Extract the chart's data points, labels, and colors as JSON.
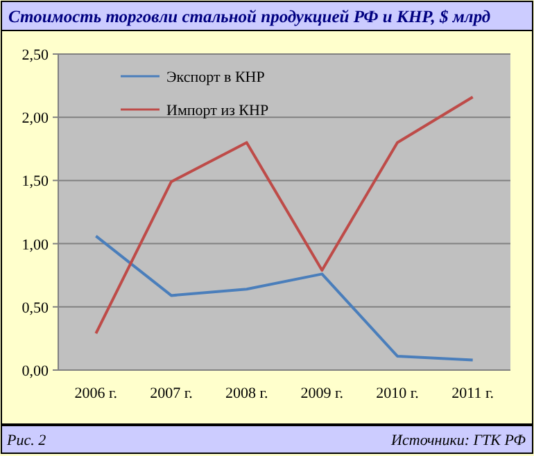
{
  "chart_data": {
    "type": "line",
    "title": "Стоимость торговли стальной продукцией РФ и КНР, $ млрд",
    "categories": [
      "2006 г.",
      "2007 г.",
      "2008 г.",
      "2009 г.",
      "2010 г.",
      "2011 г."
    ],
    "series": [
      {
        "name": "Экспорт в КНР",
        "color": "#4a7ebb",
        "values": [
          1.06,
          0.59,
          0.64,
          0.76,
          0.11,
          0.08
        ]
      },
      {
        "name": "Импорт из КНР",
        "color": "#be4b48",
        "values": [
          0.29,
          1.49,
          1.8,
          0.79,
          1.8,
          2.16
        ]
      }
    ],
    "ylim": [
      0,
      2.5
    ],
    "yticks": [
      {
        "value": 0,
        "label": "0,00"
      },
      {
        "value": 0.5,
        "label": "0,50"
      },
      {
        "value": 1,
        "label": "1,00"
      },
      {
        "value": 1.5,
        "label": "1,50"
      },
      {
        "value": 2,
        "label": "2,00"
      },
      {
        "value": 2.5,
        "label": "2,50"
      }
    ],
    "grid": "y",
    "legend": "top left",
    "marker": "none",
    "line_style": "solid",
    "annotations": [
      "Рис. 2",
      "Источники: ГТК РФ"
    ]
  }
}
